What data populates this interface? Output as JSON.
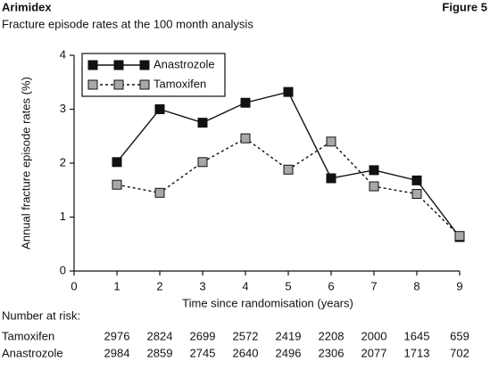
{
  "chart_data": {
    "type": "line",
    "title": "Arimidex",
    "figure_label": "Figure 5",
    "subtitle": "Fracture episode rates at the 100 month analysis",
    "x_label": "Time since randomisation (years)",
    "y_label": "Annual fracture episode rates (%)",
    "x": [
      1,
      2,
      3,
      4,
      5,
      6,
      7,
      8,
      9
    ],
    "xlim": [
      0,
      9
    ],
    "xticks": [
      0,
      1,
      2,
      3,
      4,
      5,
      6,
      7,
      8,
      9
    ],
    "ylim": [
      0,
      4
    ],
    "yticks": [
      0,
      1,
      2,
      3,
      4
    ],
    "grid": false,
    "legend": "top-left",
    "series": [
      {
        "name": "Anastrozole",
        "color": "#111111",
        "marker_fill": "#111111",
        "dashed": false,
        "values": [
          2.02,
          3.0,
          2.75,
          3.12,
          3.32,
          1.72,
          1.87,
          1.68,
          0.63
        ]
      },
      {
        "name": "Tamoxifen",
        "color": "#111111",
        "marker_fill": "#a8a8a8",
        "dashed": true,
        "values": [
          1.6,
          1.45,
          2.02,
          2.46,
          1.88,
          2.4,
          1.57,
          1.43,
          0.65
        ]
      }
    ],
    "number_at_risk": {
      "title": "Number at risk:",
      "rows": [
        {
          "name": "Tamoxifen",
          "values": [
            2976,
            2824,
            2699,
            2572,
            2419,
            2208,
            2000,
            1645,
            659
          ]
        },
        {
          "name": "Anastrozole",
          "values": [
            2984,
            2859,
            2745,
            2640,
            2496,
            2306,
            2077,
            1713,
            702
          ]
        }
      ]
    }
  }
}
